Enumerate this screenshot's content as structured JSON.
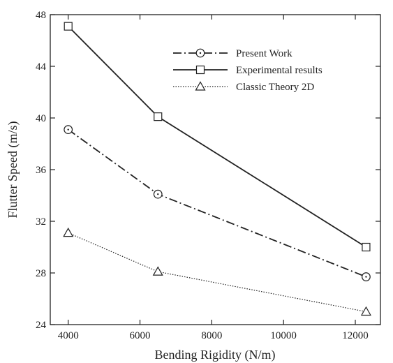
{
  "chart_data": {
    "type": "line",
    "title": "",
    "xlabel": "Bending Rigidity (N/m)",
    "ylabel": "Flutter Speed (m/s)",
    "xlim": [
      3500,
      12700
    ],
    "ylim": [
      24,
      48
    ],
    "xticks": [
      4000,
      6000,
      8000,
      10000,
      12000
    ],
    "yticks": [
      24,
      28,
      32,
      36,
      40,
      44,
      48
    ],
    "grid": false,
    "legend_position": "top-right",
    "series": [
      {
        "name": "Present Work",
        "x": [
          4000,
          6500,
          12300
        ],
        "y": [
          39.1,
          34.1,
          27.7
        ],
        "line_style": "dash-dot",
        "marker": "circle-dot",
        "color": "#222222"
      },
      {
        "name": "Experimental results",
        "x": [
          4000,
          6500,
          12300
        ],
        "y": [
          47.1,
          40.1,
          30.0
        ],
        "line_style": "solid",
        "marker": "square",
        "color": "#222222"
      },
      {
        "name": "Classic Theory 2D",
        "x": [
          4000,
          6500,
          12300
        ],
        "y": [
          31.1,
          28.1,
          25.0
        ],
        "line_style": "dotted",
        "marker": "triangle",
        "color": "#222222"
      }
    ]
  }
}
